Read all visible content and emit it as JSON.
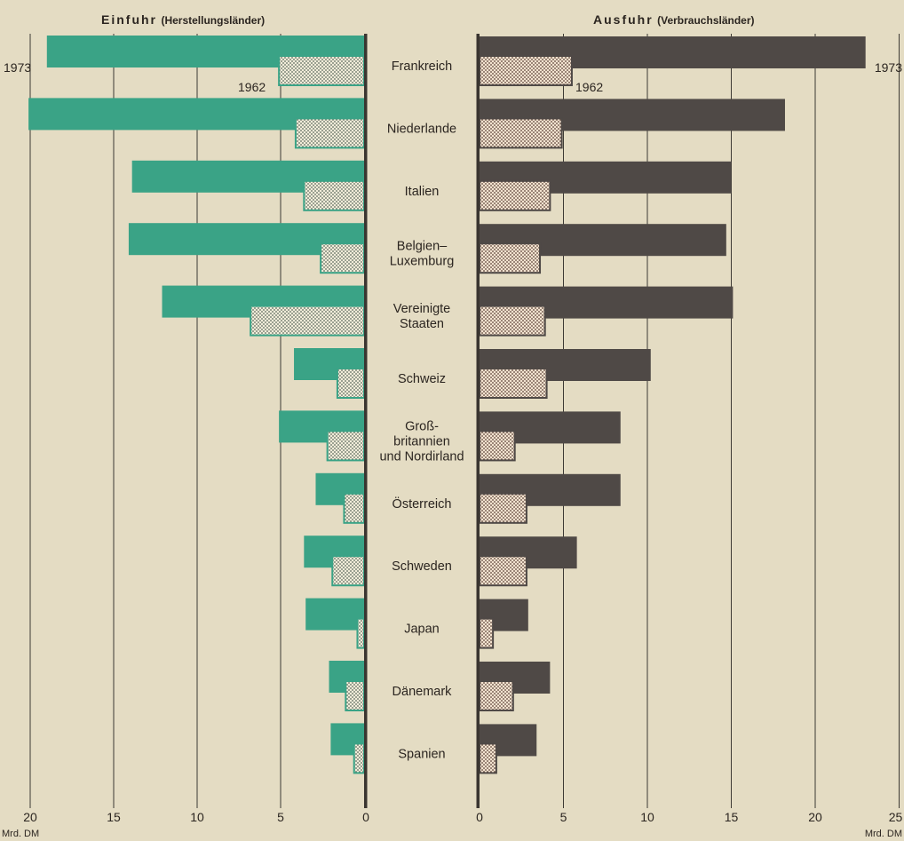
{
  "chart_data": {
    "type": "bar",
    "orientation": "horizontal-butterfly",
    "categories": [
      [
        "Frankreich"
      ],
      [
        "Niederlande"
      ],
      [
        "Italien"
      ],
      [
        "Belgien–",
        "Luxemburg"
      ],
      [
        "Vereinigte",
        "Staaten"
      ],
      [
        "Schweiz"
      ],
      [
        "Groß-",
        "britannien",
        "und Nordirland"
      ],
      [
        "Österreich"
      ],
      [
        "Schweden"
      ],
      [
        "Japan"
      ],
      [
        "Dänemark"
      ],
      [
        "Spanien"
      ]
    ],
    "left_panel": {
      "title_main": "Einfuhr",
      "title_sub": "(Herstellungsländer)",
      "xlim": [
        0,
        20
      ],
      "ticks": [
        20,
        15,
        10,
        5,
        0
      ],
      "unit": "Mrd. DM",
      "series": [
        {
          "name": "1973",
          "color": "#3aa386",
          "values": [
            19,
            20.1,
            13.9,
            14.1,
            12.1,
            4.2,
            5.1,
            2.9,
            3.6,
            3.5,
            2.1,
            2.0
          ]
        },
        {
          "name": "1962",
          "pattern": "dots",
          "values": [
            5.1,
            4.1,
            3.6,
            2.6,
            6.8,
            1.6,
            2.2,
            1.2,
            1.9,
            0.4,
            1.1,
            0.6
          ]
        }
      ]
    },
    "right_panel": {
      "title_main": "Ausfuhr",
      "title_sub": "(Verbrauchsländer)",
      "xlim": [
        0,
        25
      ],
      "ticks": [
        0,
        5,
        10,
        15,
        20,
        25
      ],
      "unit": "Mrd. DM",
      "series": [
        {
          "name": "1973",
          "color": "#4f4946",
          "values": [
            23.0,
            18.2,
            15.0,
            14.7,
            15.1,
            10.2,
            8.4,
            8.4,
            5.8,
            2.9,
            4.2,
            3.4
          ]
        },
        {
          "name": "1962",
          "pattern": "dots",
          "values": [
            5.5,
            4.9,
            4.2,
            3.6,
            3.9,
            4.0,
            2.1,
            2.8,
            2.8,
            0.8,
            2.0,
            1.0
          ]
        }
      ]
    },
    "annotations": {
      "left_1973": "1973",
      "left_1962": "1962",
      "right_1973": "1973",
      "right_1962": "1962"
    },
    "grid": true
  }
}
